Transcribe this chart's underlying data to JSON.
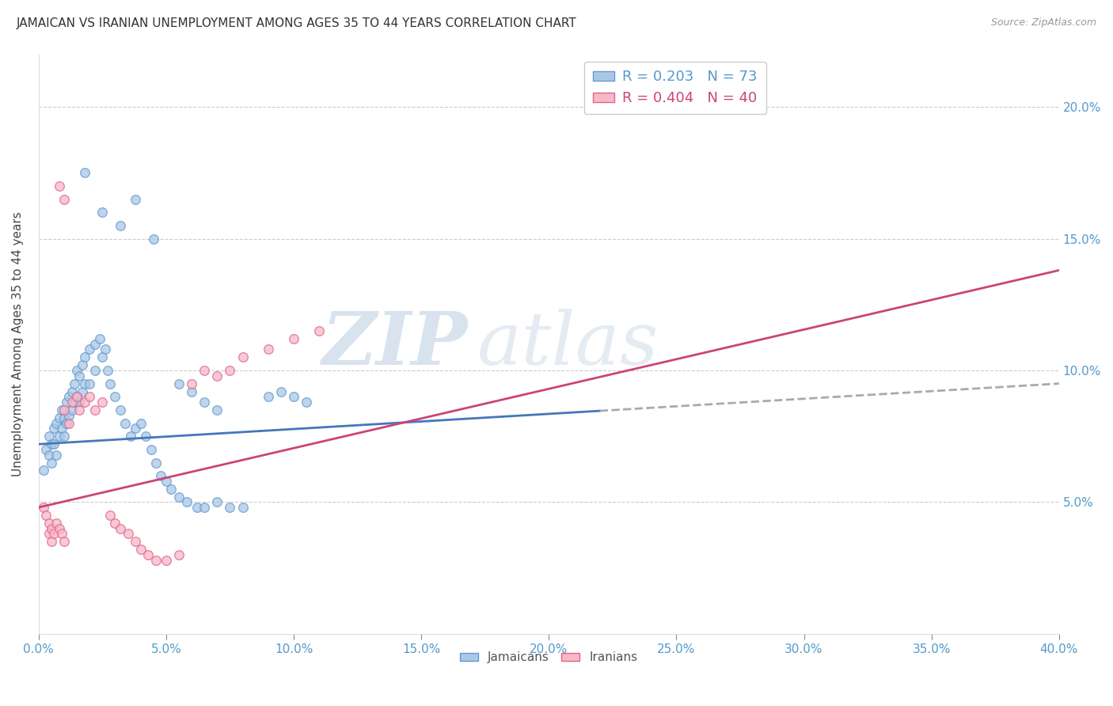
{
  "title": "JAMAICAN VS IRANIAN UNEMPLOYMENT AMONG AGES 35 TO 44 YEARS CORRELATION CHART",
  "source": "Source: ZipAtlas.com",
  "ylabel": "Unemployment Among Ages 35 to 44 years",
  "xlim": [
    0.0,
    0.4
  ],
  "ylim": [
    0.0,
    0.22
  ],
  "watermark_zip": "ZIP",
  "watermark_atlas": "atlas",
  "jamaican_color": "#a8c8e8",
  "jamaican_edge": "#6699cc",
  "iranian_color": "#f8b8c8",
  "iranian_edge": "#dd6688",
  "trend_jamaican_color": "#4477bb",
  "trend_iranian_color": "#cc4477",
  "trend_dashed_color": "#aaaaaa",
  "jamaican_trend": [
    0.0,
    0.072,
    0.4,
    0.095
  ],
  "iranian_trend": [
    0.0,
    0.048,
    0.4,
    0.138
  ],
  "jamaican_trend_solid_end": 0.22,
  "jamaican_trend_dashed_start": 0.22,
  "marker_size": 70,
  "alpha": 0.75,
  "jamaican_points": [
    [
      0.002,
      0.062
    ],
    [
      0.003,
      0.07
    ],
    [
      0.004,
      0.068
    ],
    [
      0.004,
      0.075
    ],
    [
      0.005,
      0.072
    ],
    [
      0.005,
      0.065
    ],
    [
      0.006,
      0.078
    ],
    [
      0.006,
      0.072
    ],
    [
      0.007,
      0.08
    ],
    [
      0.007,
      0.068
    ],
    [
      0.008,
      0.082
    ],
    [
      0.008,
      0.075
    ],
    [
      0.009,
      0.085
    ],
    [
      0.009,
      0.078
    ],
    [
      0.01,
      0.082
    ],
    [
      0.01,
      0.075
    ],
    [
      0.011,
      0.088
    ],
    [
      0.011,
      0.08
    ],
    [
      0.012,
      0.09
    ],
    [
      0.012,
      0.083
    ],
    [
      0.013,
      0.092
    ],
    [
      0.013,
      0.085
    ],
    [
      0.014,
      0.095
    ],
    [
      0.014,
      0.088
    ],
    [
      0.015,
      0.1
    ],
    [
      0.015,
      0.09
    ],
    [
      0.016,
      0.098
    ],
    [
      0.016,
      0.088
    ],
    [
      0.017,
      0.102
    ],
    [
      0.017,
      0.092
    ],
    [
      0.018,
      0.105
    ],
    [
      0.018,
      0.095
    ],
    [
      0.02,
      0.108
    ],
    [
      0.02,
      0.095
    ],
    [
      0.022,
      0.11
    ],
    [
      0.022,
      0.1
    ],
    [
      0.024,
      0.112
    ],
    [
      0.025,
      0.105
    ],
    [
      0.026,
      0.108
    ],
    [
      0.027,
      0.1
    ],
    [
      0.028,
      0.095
    ],
    [
      0.03,
      0.09
    ],
    [
      0.032,
      0.085
    ],
    [
      0.034,
      0.08
    ],
    [
      0.036,
      0.075
    ],
    [
      0.038,
      0.078
    ],
    [
      0.04,
      0.08
    ],
    [
      0.042,
      0.075
    ],
    [
      0.044,
      0.07
    ],
    [
      0.046,
      0.065
    ],
    [
      0.048,
      0.06
    ],
    [
      0.05,
      0.058
    ],
    [
      0.052,
      0.055
    ],
    [
      0.055,
      0.052
    ],
    [
      0.058,
      0.05
    ],
    [
      0.062,
      0.048
    ],
    [
      0.065,
      0.048
    ],
    [
      0.07,
      0.05
    ],
    [
      0.075,
      0.048
    ],
    [
      0.08,
      0.048
    ],
    [
      0.09,
      0.09
    ],
    [
      0.095,
      0.092
    ],
    [
      0.1,
      0.09
    ],
    [
      0.105,
      0.088
    ],
    [
      0.018,
      0.175
    ],
    [
      0.025,
      0.16
    ],
    [
      0.032,
      0.155
    ],
    [
      0.038,
      0.165
    ],
    [
      0.045,
      0.15
    ],
    [
      0.055,
      0.095
    ],
    [
      0.06,
      0.092
    ],
    [
      0.065,
      0.088
    ],
    [
      0.07,
      0.085
    ]
  ],
  "iranian_points": [
    [
      0.002,
      0.048
    ],
    [
      0.003,
      0.045
    ],
    [
      0.004,
      0.042
    ],
    [
      0.004,
      0.038
    ],
    [
      0.005,
      0.04
    ],
    [
      0.005,
      0.035
    ],
    [
      0.006,
      0.038
    ],
    [
      0.007,
      0.042
    ],
    [
      0.008,
      0.04
    ],
    [
      0.009,
      0.038
    ],
    [
      0.01,
      0.035
    ],
    [
      0.01,
      0.085
    ],
    [
      0.012,
      0.08
    ],
    [
      0.013,
      0.088
    ],
    [
      0.015,
      0.09
    ],
    [
      0.016,
      0.085
    ],
    [
      0.018,
      0.088
    ],
    [
      0.02,
      0.09
    ],
    [
      0.022,
      0.085
    ],
    [
      0.025,
      0.088
    ],
    [
      0.028,
      0.045
    ],
    [
      0.03,
      0.042
    ],
    [
      0.032,
      0.04
    ],
    [
      0.035,
      0.038
    ],
    [
      0.038,
      0.035
    ],
    [
      0.04,
      0.032
    ],
    [
      0.043,
      0.03
    ],
    [
      0.046,
      0.028
    ],
    [
      0.05,
      0.028
    ],
    [
      0.055,
      0.03
    ],
    [
      0.008,
      0.17
    ],
    [
      0.01,
      0.165
    ],
    [
      0.06,
      0.095
    ],
    [
      0.065,
      0.1
    ],
    [
      0.07,
      0.098
    ],
    [
      0.075,
      0.1
    ],
    [
      0.08,
      0.105
    ],
    [
      0.09,
      0.108
    ],
    [
      0.1,
      0.112
    ],
    [
      0.11,
      0.115
    ]
  ]
}
